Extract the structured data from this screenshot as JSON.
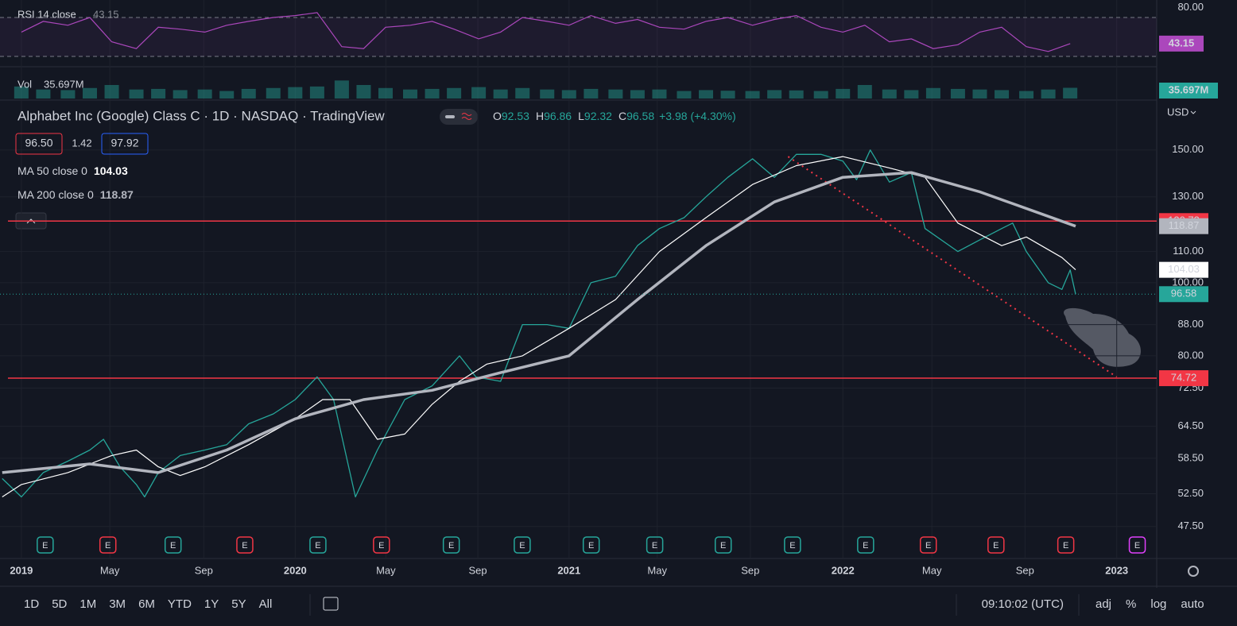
{
  "header": {
    "title": "Alphabet Inc (Google) Class C · 1D · NASDAQ · TradingView",
    "ohlc": [
      {
        "label": "O",
        "value": 92.53
      },
      {
        "label": "H",
        "value": 96.86
      },
      {
        "label": "L",
        "value": 92.32
      }
    ],
    "close_label": "C",
    "change": "+3.98 (+4.30%)",
    "bid": "96.50",
    "spread": 1.42,
    "ask": 97.92,
    "currency": "USD"
  },
  "indicators": {
    "rsi_title": "RSI 14 close",
    "rsi_color": "#ab47bc",
    "rsi_ylim": [
      22.6,
      88
    ],
    "rsi_levels": [
      70,
      30
    ],
    "rsi_yticks": [
      {
        "value": 80,
        "label": "80.00"
      }
    ],
    "vol_title": "Vol",
    "vol_label": "35.697M",
    "vol_ylim": [
      0,
      90
    ],
    "vol_color": "#26a69a",
    "x": [
      2019.0,
      2019.08,
      2019.17,
      2019.25,
      2019.33,
      2019.42,
      2019.5,
      2019.58,
      2019.67,
      2019.75,
      2019.83,
      2019.92,
      2020.0,
      2020.08,
      2020.17,
      2020.25,
      2020.33,
      2020.42,
      2020.5,
      2020.58,
      2020.67,
      2020.75,
      2020.83,
      2020.92,
      2021.0,
      2021.08,
      2021.17,
      2021.25,
      2021.33,
      2021.42,
      2021.5,
      2021.58,
      2021.67,
      2021.75,
      2021.83,
      2021.92,
      2022.0,
      2022.08,
      2022.17,
      2022.25,
      2022.33,
      2022.42,
      2022.5,
      2022.58,
      2022.67,
      2022.75,
      2022.83
    ],
    "rsi": [
      55,
      66,
      62,
      70,
      45,
      38,
      60,
      58,
      55,
      62,
      66,
      70,
      72,
      75,
      40,
      38,
      60,
      62,
      66,
      58,
      48,
      55,
      70,
      66,
      62,
      72,
      64,
      68,
      60,
      58,
      66,
      70,
      62,
      68,
      72,
      60,
      55,
      62,
      45,
      48,
      38,
      42,
      55,
      60,
      40,
      35,
      43.15
    ],
    "volume": [
      40,
      30,
      28,
      35,
      45,
      30,
      32,
      28,
      30,
      25,
      32,
      35,
      38,
      40,
      60,
      45,
      35,
      30,
      32,
      35,
      38,
      30,
      35,
      30,
      28,
      32,
      30,
      28,
      30,
      25,
      28,
      26,
      25,
      28,
      27,
      25,
      32,
      45,
      30,
      28,
      35,
      32,
      30,
      28,
      25,
      30,
      35.697
    ]
  },
  "chart_data": {
    "type": "line",
    "yscale": "log",
    "xlim": [
      2018.922,
      2023.146
    ],
    "ylim": [
      43.4,
      173
    ],
    "yticks": [
      {
        "value": 150,
        "label": "150.00"
      },
      {
        "value": 130,
        "label": "130.00"
      },
      {
        "value": 110,
        "label": "110.00"
      },
      {
        "value": 100,
        "label": "100.00"
      },
      {
        "value": 88,
        "label": "88.00"
      },
      {
        "value": 80,
        "label": "80.00"
      },
      {
        "value": 72.5,
        "label": "72.50"
      },
      {
        "value": 64.5,
        "label": "64.50"
      },
      {
        "value": 58.5,
        "label": "58.50"
      },
      {
        "value": 52.5,
        "label": "52.50"
      },
      {
        "value": 47.5,
        "label": "47.50"
      }
    ],
    "xticks": [
      {
        "value": 2019,
        "label": "2019"
      },
      {
        "value": 2019.323,
        "label": "May"
      },
      {
        "value": 2019.666,
        "label": "Sep"
      },
      {
        "value": 2020,
        "label": "2020"
      },
      {
        "value": 2020.331,
        "label": "May"
      },
      {
        "value": 2020.667,
        "label": "Sep"
      },
      {
        "value": 2021,
        "label": "2021"
      },
      {
        "value": 2021.322,
        "label": "May"
      },
      {
        "value": 2021.662,
        "label": "Sep"
      },
      {
        "value": 2022,
        "label": "2022"
      },
      {
        "value": 2022.325,
        "label": "May"
      },
      {
        "value": 2022.665,
        "label": "Sep"
      },
      {
        "value": 2023,
        "label": "2023"
      }
    ],
    "grid": true,
    "series": [
      {
        "color": "#26a69a",
        "x": [
          2018.93,
          2019.0,
          2019.08,
          2019.17,
          2019.25,
          2019.3,
          2019.36,
          2019.42,
          2019.45,
          2019.5,
          2019.58,
          2019.67,
          2019.75,
          2019.83,
          2019.92,
          2020.0,
          2020.08,
          2020.14,
          2020.2,
          2020.22,
          2020.3,
          2020.4,
          2020.5,
          2020.6,
          2020.66,
          2020.75,
          2020.83,
          2020.92,
          2021.0,
          2021.08,
          2021.17,
          2021.25,
          2021.33,
          2021.42,
          2021.5,
          2021.58,
          2021.67,
          2021.75,
          2021.83,
          2021.92,
          2022.0,
          2022.05,
          2022.1,
          2022.17,
          2022.25,
          2022.3,
          2022.42,
          2022.5,
          2022.58,
          2022.62,
          2022.67,
          2022.75,
          2022.8,
          2022.83,
          2022.85
        ],
        "values": [
          55,
          52,
          56,
          58,
          60,
          62,
          57,
          54,
          52,
          56,
          59,
          60,
          61,
          65,
          67,
          70,
          75,
          70,
          56,
          52,
          60,
          70,
          73,
          80,
          75,
          74,
          88,
          88,
          87,
          100,
          102,
          112,
          118,
          122,
          130,
          138,
          146,
          138,
          148,
          148,
          145,
          137,
          150,
          136,
          140,
          118,
          110,
          114,
          118,
          120,
          110,
          100,
          98,
          104,
          96.58
        ]
      },
      {
        "name": "MA 50 close 0",
        "color": "#ffffff",
        "x": [
          2018.93,
          2019.0,
          2019.17,
          2019.33,
          2019.42,
          2019.5,
          2019.58,
          2019.67,
          2019.83,
          2020.0,
          2020.1,
          2020.2,
          2020.3,
          2020.4,
          2020.5,
          2020.6,
          2020.7,
          2020.83,
          2021.0,
          2021.17,
          2021.33,
          2021.5,
          2021.67,
          2021.83,
          2022.0,
          2022.17,
          2022.3,
          2022.42,
          2022.58,
          2022.67,
          2022.8,
          2022.85
        ],
        "values": [
          52,
          54,
          56,
          59,
          60,
          57,
          55.5,
          57,
          61,
          66,
          70,
          70,
          62,
          63,
          69,
          74,
          78,
          80,
          87,
          95,
          110,
          122,
          135,
          143,
          147,
          142,
          138,
          120,
          112,
          115,
          108,
          104.03
        ]
      },
      {
        "name": "MA 200 close 0",
        "color": "#b2b5be",
        "x": [
          2018.93,
          2019.25,
          2019.5,
          2019.75,
          2020.0,
          2020.25,
          2020.5,
          2020.75,
          2021.0,
          2021.25,
          2021.5,
          2021.75,
          2022.0,
          2022.25,
          2022.5,
          2022.85
        ],
        "values": [
          56,
          57.5,
          56,
          60,
          66,
          70,
          72,
          76,
          80,
          95,
          112,
          128,
          138,
          140,
          132,
          118.87
        ]
      }
    ],
    "levels": [
      {
        "value": 120.73,
        "color": "#f23645"
      },
      {
        "value": 74.72,
        "color": "#f23645"
      }
    ],
    "trendline": {
      "x": [
        2021.8,
        2023.0
      ],
      "values": [
        147,
        75
      ],
      "color": "#f23645"
    },
    "earnings": {
      "label": "E",
      "x": [
        2019.087,
        2019.316,
        2019.554,
        2019.816,
        2020.083,
        2020.315,
        2020.57,
        2020.829,
        2021.081,
        2021.313,
        2021.563,
        2021.816,
        2022.083,
        2022.312,
        2022.559,
        2022.814,
        2023.075
      ],
      "colors": [
        "#26a69a",
        "#f23645",
        "#26a69a",
        "#f23645",
        "#26a69a",
        "#f23645",
        "#26a69a",
        "#26a69a",
        "#26a69a",
        "#26a69a",
        "#26a69a",
        "#26a69a",
        "#26a69a",
        "#f23645",
        "#f23645",
        "#f23645",
        "#e040fb"
      ]
    }
  },
  "toolbar": {
    "ranges": [
      "1D",
      "5D",
      "1M",
      "3M",
      "6M",
      "YTD",
      "1Y",
      "5Y",
      "All"
    ],
    "time": "09:10:02 (UTC)",
    "options": [
      "adj",
      "%",
      "log",
      "auto"
    ]
  }
}
